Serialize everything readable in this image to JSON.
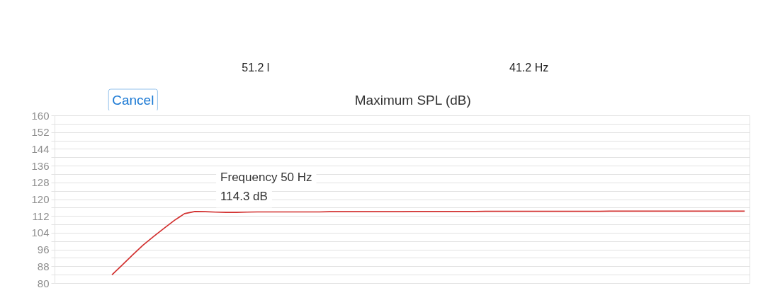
{
  "chart_data": {
    "type": "line",
    "title": "Maximum SPL (dB)",
    "categories": [
      null,
      null,
      null,
      null,
      null,
      null,
      null,
      null,
      null,
      null,
      null,
      null,
      null,
      null,
      null,
      null,
      null,
      null,
      null,
      null,
      null,
      null,
      null,
      null,
      null,
      null,
      null,
      null,
      null,
      null,
      null,
      null,
      null,
      null,
      null,
      null,
      null,
      null,
      null,
      null,
      null,
      null,
      null,
      null,
      null,
      null,
      null,
      null,
      null,
      null,
      null,
      null,
      null,
      null,
      null,
      null,
      null,
      null,
      null,
      null,
      null,
      null,
      null,
      null,
      null,
      null,
      null
    ],
    "series": [
      {
        "color": "#d2302f",
        "values": [
          null,
          null,
          null,
          null,
          null,
          84.1,
          88.8,
          93.6,
          98.3,
          102.3,
          106.2,
          110.0,
          113.3,
          114.3,
          114.2,
          114.0,
          113.9,
          113.9,
          114.0,
          114.1,
          114.1,
          114.1,
          114.1,
          114.1,
          114.1,
          114.1,
          114.2,
          114.2,
          114.2,
          114.2,
          114.2,
          114.2,
          114.2,
          114.2,
          114.3,
          114.3,
          114.3,
          114.3,
          114.3,
          114.3,
          114.3,
          114.4,
          114.4,
          114.4,
          114.4,
          114.4,
          114.4,
          114.4,
          114.4,
          114.4,
          114.4,
          114.4,
          114.4,
          114.5,
          114.5,
          114.5,
          114.5,
          114.5,
          114.5,
          114.5,
          114.5,
          114.5,
          114.5,
          114.5,
          114.5,
          114.5,
          114.5
        ]
      }
    ],
    "ylim": [
      80,
      160
    ],
    "yticks": [
      80,
      {
        "value": 84,
        "label": null
      },
      88,
      {
        "value": 92,
        "label": null
      },
      96,
      {
        "value": 100,
        "label": null
      },
      104,
      {
        "value": 108,
        "label": null
      },
      112,
      {
        "value": 116,
        "label": null
      },
      120,
      {
        "value": 124,
        "label": null
      },
      128,
      {
        "value": 132,
        "label": null
      },
      136,
      {
        "value": 140,
        "label": null
      },
      144,
      {
        "value": 148,
        "label": null
      },
      152,
      {
        "value": 156,
        "label": null
      },
      160
    ],
    "tick_labels": "y",
    "grid": "y",
    "line_style": "solid",
    "annotations": [
      "51.2 l",
      "41.2 Hz",
      "Cancel",
      {
        "text": "Frequency 50 Hz",
        "y": 114.3
      },
      {
        "text": "114.3 dB",
        "y": 114.3
      }
    ]
  }
}
